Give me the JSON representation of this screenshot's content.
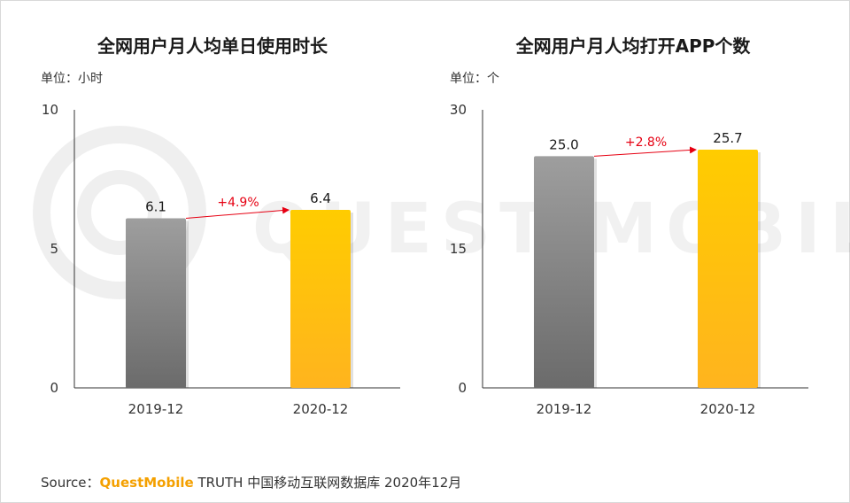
{
  "chart_data": [
    {
      "type": "bar",
      "title": "全网用户月人均单日使用时长",
      "unit": "单位：小时",
      "categories": [
        "2019-12",
        "2020-12"
      ],
      "values": [
        6.1,
        6.4
      ],
      "ylim": [
        0,
        10
      ],
      "yticks": [
        "0",
        "5",
        "10"
      ],
      "data_labels": [
        "6.1",
        "6.4"
      ],
      "growth_label": "+4.9%",
      "colors": [
        "#7a7a7a",
        "#ffb400"
      ],
      "grid": false
    },
    {
      "type": "bar",
      "title": "全网用户月人均打开APP个数",
      "unit": "单位：个",
      "categories": [
        "2019-12",
        "2020-12"
      ],
      "values": [
        25.0,
        25.7
      ],
      "ylim": [
        0,
        30
      ],
      "yticks": [
        "0",
        "15",
        "30"
      ],
      "data_labels": [
        "25.0",
        "25.7"
      ],
      "growth_label": "+2.8%",
      "colors": [
        "#7a7a7a",
        "#ffb400"
      ],
      "grid": false
    }
  ],
  "footer": {
    "source_prefix": "Source：",
    "brand": "QuestMobile",
    "source_text": "TRUTH 中国移动互联网数据库 2020年12月"
  },
  "watermark_text": "QUEST MOBILE",
  "colors": {
    "arrow": "#e60012",
    "axis": "#333333",
    "label": "#1a1a1a"
  }
}
